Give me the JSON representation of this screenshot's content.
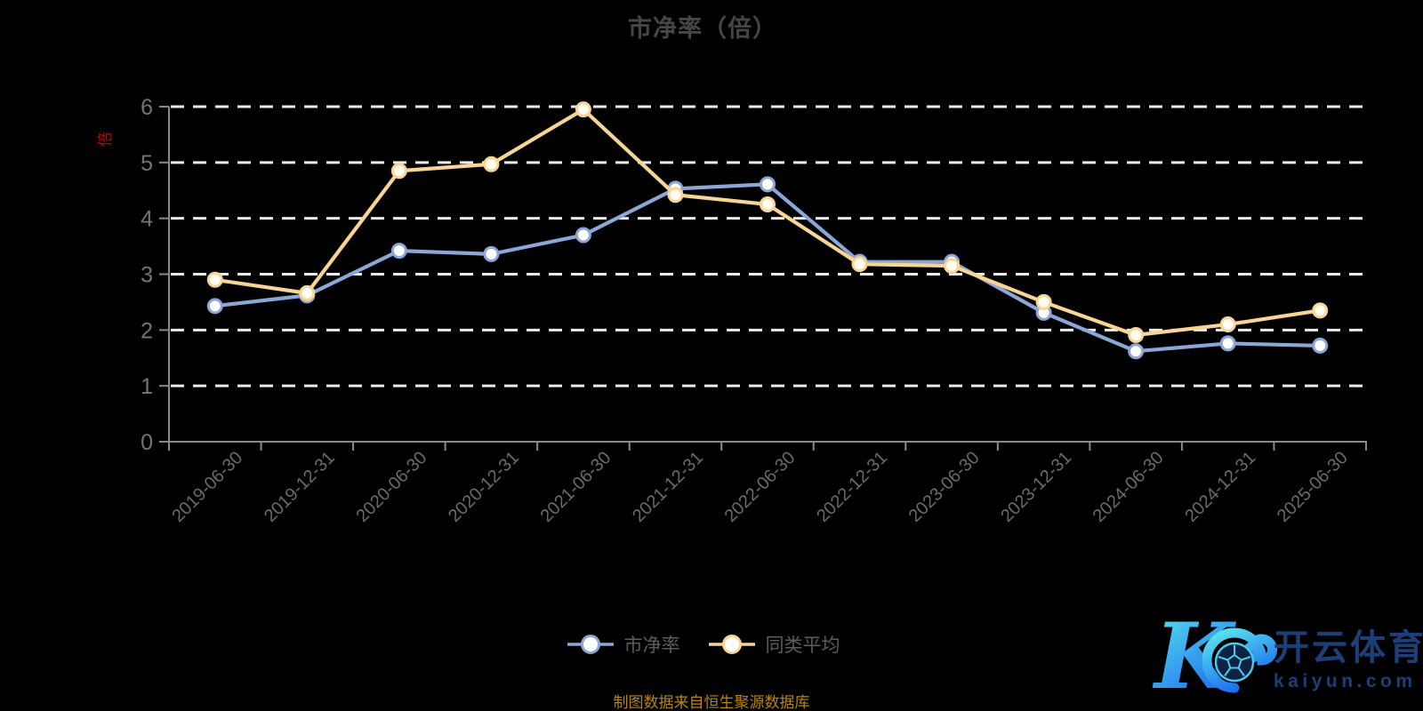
{
  "page": {
    "background": "#000000"
  },
  "title": {
    "text": "市净率（倍）",
    "color": "#464646"
  },
  "y_axis": {
    "name": "倍",
    "name_color": "#d00000",
    "ticks": [
      0,
      1,
      2,
      3,
      4,
      5,
      6
    ],
    "label_color": "#757575",
    "range": [
      0,
      6
    ]
  },
  "x_axis": {
    "label_color": "#6b6b6b"
  },
  "grid": {
    "line_color": "#ececec",
    "axis_color": "#8a8a8a"
  },
  "chart_data": {
    "type": "line",
    "title": "市净率（倍）",
    "xlabel": "",
    "ylabel": "倍",
    "ylim": [
      0,
      6
    ],
    "grid": true,
    "legend_position": "bottom",
    "categories": [
      "2019-06-30",
      "2019-12-31",
      "2020-06-30",
      "2020-12-31",
      "2021-06-30",
      "2021-12-31",
      "2022-06-30",
      "2022-12-31",
      "2023-06-30",
      "2023-12-31",
      "2024-06-30",
      "2024-12-31",
      "2025-06-30"
    ],
    "series": [
      {
        "name": "市净率",
        "color": "#8ba7d8",
        "marker_fill": "#ffffff",
        "values": [
          2.43,
          2.62,
          3.42,
          3.36,
          3.7,
          4.53,
          4.61,
          3.22,
          3.22,
          2.31,
          1.62,
          1.76,
          1.72
        ]
      },
      {
        "name": "同类平均",
        "color": "#f8d593",
        "marker_fill": "#fffdf4",
        "values": [
          2.9,
          2.66,
          4.85,
          4.97,
          5.95,
          4.42,
          4.25,
          3.18,
          3.15,
          2.5,
          1.91,
          2.1,
          2.35
        ]
      }
    ]
  },
  "legend": {
    "text_color": "#5c5c5c",
    "items": [
      {
        "label": "市净率",
        "color": "#8ba7d8"
      },
      {
        "label": "同类平均",
        "color": "#f8d593"
      }
    ]
  },
  "footer": {
    "source_text": "制图数据来自恒生聚源数据库",
    "color": "#b8860b"
  },
  "watermark": {
    "brand_cn": "开云体育",
    "brand_domain": "kaiyun.com",
    "text_color": "#1d3f78",
    "gradient_start": "#5ce9ee",
    "gradient_end": "#1b6cf0",
    "ball_line_color": "#46cdf0",
    "ball_fill": "#0d2140"
  }
}
